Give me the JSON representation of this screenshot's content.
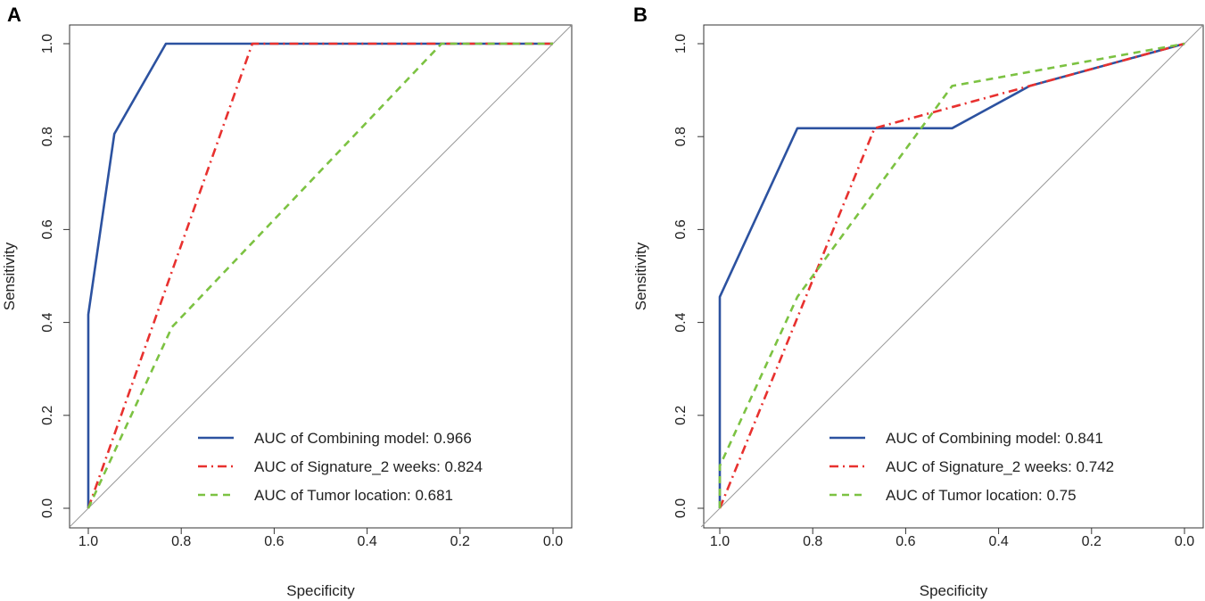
{
  "chart_data": [
    {
      "type": "line",
      "panel_label": "A",
      "xlabel": "Specificity",
      "ylabel": "Sensitivity",
      "xlim": [
        1.0,
        0.0
      ],
      "ylim": [
        0.0,
        1.0
      ],
      "x_ticks": [
        "1.0",
        "0.8",
        "0.6",
        "0.4",
        "0.2",
        "0.0"
      ],
      "y_ticks": [
        "0.0",
        "0.2",
        "0.4",
        "0.6",
        "0.8",
        "1.0"
      ],
      "legend_position": "bottom-right",
      "series": [
        {
          "name": "AUC of Combining model: 0.966",
          "color": "#2c52a0",
          "style": "solid",
          "x": [
            1.0,
            1.0,
            0.944,
            0.833,
            0.0
          ],
          "y": [
            0.0,
            0.417,
            0.806,
            1.0,
            1.0
          ]
        },
        {
          "name": "AUC of Signature_2 weeks: 0.824",
          "color": "#e8312f",
          "style": "dashdot",
          "x": [
            1.0,
            0.647,
            0.0
          ],
          "y": [
            0.0,
            1.0,
            1.0
          ]
        },
        {
          "name": "AUC of Tumor location: 0.681",
          "color": "#7cc242",
          "style": "dashed",
          "x": [
            1.0,
            0.82,
            0.24,
            0.0
          ],
          "y": [
            0.0,
            0.39,
            1.0,
            1.0
          ]
        }
      ],
      "reference_line": {
        "color": "#9a9a9a",
        "x": [
          1.0,
          0.0
        ],
        "y": [
          0.0,
          1.0
        ]
      }
    },
    {
      "type": "line",
      "panel_label": "B",
      "xlabel": "Specificity",
      "ylabel": "Sensitivity",
      "xlim": [
        1.0,
        0.0
      ],
      "ylim": [
        0.0,
        1.0
      ],
      "x_ticks": [
        "1.0",
        "0.8",
        "0.6",
        "0.4",
        "0.2",
        "0.0"
      ],
      "y_ticks": [
        "0.0",
        "0.2",
        "0.4",
        "0.6",
        "0.8",
        "1.0"
      ],
      "legend_position": "bottom-right",
      "series": [
        {
          "name": "AUC of Combining model: 0.841",
          "color": "#2c52a0",
          "style": "solid",
          "x": [
            1.0,
            1.0,
            0.833,
            0.5,
            0.333,
            0.0
          ],
          "y": [
            0.0,
            0.455,
            0.818,
            0.818,
            0.909,
            1.0
          ]
        },
        {
          "name": "AUC of Signature_2 weeks: 0.742",
          "color": "#e8312f",
          "style": "dashdot",
          "x": [
            1.0,
            0.667,
            0.333,
            0.0
          ],
          "y": [
            0.0,
            0.818,
            0.909,
            1.0
          ]
        },
        {
          "name": "AUC of Tumor location: 0.75",
          "color": "#7cc242",
          "style": "dashed",
          "x": [
            1.0,
            1.0,
            0.833,
            0.5,
            0.0
          ],
          "y": [
            0.0,
            0.091,
            0.455,
            0.909,
            1.0
          ]
        }
      ],
      "reference_line": {
        "color": "#9a9a9a",
        "x": [
          1.0,
          0.0
        ],
        "y": [
          0.0,
          1.0
        ]
      }
    }
  ]
}
